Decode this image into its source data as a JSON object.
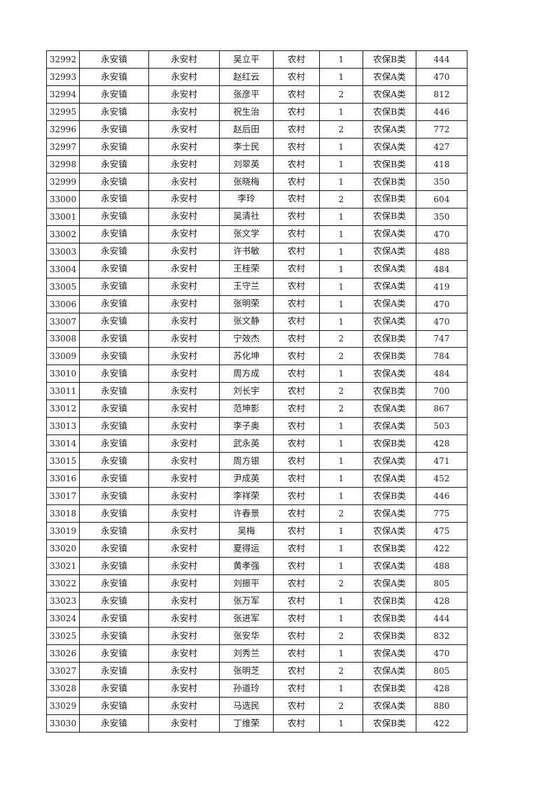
{
  "table": {
    "rows": [
      [
        "32992",
        "永安镇",
        "永安村",
        "吴立平",
        "农村",
        "1",
        "农保B类",
        "444"
      ],
      [
        "32993",
        "永安镇",
        "永安村",
        "赵红云",
        "农村",
        "1",
        "农保A类",
        "470"
      ],
      [
        "32994",
        "永安镇",
        "永安村",
        "张彦平",
        "农村",
        "2",
        "农保A类",
        "812"
      ],
      [
        "32995",
        "永安镇",
        "永安村",
        "祝生治",
        "农村",
        "1",
        "农保B类",
        "446"
      ],
      [
        "32996",
        "永安镇",
        "永安村",
        "赵后田",
        "农村",
        "2",
        "农保A类",
        "772"
      ],
      [
        "32997",
        "永安镇",
        "永安村",
        "李士民",
        "农村",
        "1",
        "农保A类",
        "427"
      ],
      [
        "32998",
        "永安镇",
        "永安村",
        "刘翠英",
        "农村",
        "1",
        "农保B类",
        "418"
      ],
      [
        "32999",
        "永安镇",
        "永安村",
        "张晓梅",
        "农村",
        "1",
        "农保B类",
        "350"
      ],
      [
        "33000",
        "永安镇",
        "永安村",
        "李玲",
        "农村",
        "2",
        "农保B类",
        "604"
      ],
      [
        "33001",
        "永安镇",
        "永安村",
        "吴清社",
        "农村",
        "1",
        "农保B类",
        "350"
      ],
      [
        "33002",
        "永安镇",
        "永安村",
        "张文学",
        "农村",
        "1",
        "农保A类",
        "470"
      ],
      [
        "33003",
        "永安镇",
        "永安村",
        "许书敏",
        "农村",
        "1",
        "农保A类",
        "488"
      ],
      [
        "33004",
        "永安镇",
        "永安村",
        "王桂荣",
        "农村",
        "1",
        "农保A类",
        "484"
      ],
      [
        "33005",
        "永安镇",
        "永安村",
        "王守兰",
        "农村",
        "1",
        "农保A类",
        "419"
      ],
      [
        "33006",
        "永安镇",
        "永安村",
        "张明荣",
        "农村",
        "1",
        "农保A类",
        "470"
      ],
      [
        "33007",
        "永安镇",
        "永安村",
        "张文静",
        "农村",
        "1",
        "农保A类",
        "470"
      ],
      [
        "33008",
        "永安镇",
        "永安村",
        "宁效杰",
        "农村",
        "2",
        "农保B类",
        "747"
      ],
      [
        "33009",
        "永安镇",
        "永安村",
        "苏化坤",
        "农村",
        "2",
        "农保B类",
        "784"
      ],
      [
        "33010",
        "永安镇",
        "永安村",
        "周方成",
        "农村",
        "1",
        "农保A类",
        "484"
      ],
      [
        "33011",
        "永安镇",
        "永安村",
        "刘长宇",
        "农村",
        "2",
        "农保B类",
        "700"
      ],
      [
        "33012",
        "永安镇",
        "永安村",
        "范坤影",
        "农村",
        "2",
        "农保A类",
        "867"
      ],
      [
        "33013",
        "永安镇",
        "永安村",
        "李子奥",
        "农村",
        "1",
        "农保A类",
        "503"
      ],
      [
        "33014",
        "永安镇",
        "永安村",
        "武永英",
        "农村",
        "1",
        "农保B类",
        "428"
      ],
      [
        "33015",
        "永安镇",
        "永安村",
        "周方银",
        "农村",
        "1",
        "农保A类",
        "471"
      ],
      [
        "33016",
        "永安镇",
        "永安村",
        "尹成英",
        "农村",
        "1",
        "农保A类",
        "452"
      ],
      [
        "33017",
        "永安镇",
        "永安村",
        "李祥荣",
        "农村",
        "1",
        "农保B类",
        "446"
      ],
      [
        "33018",
        "永安镇",
        "永安村",
        "许春景",
        "农村",
        "2",
        "农保A类",
        "775"
      ],
      [
        "33019",
        "永安镇",
        "永安村",
        "吴梅",
        "农村",
        "1",
        "农保A类",
        "475"
      ],
      [
        "33020",
        "永安镇",
        "永安村",
        "夏得运",
        "农村",
        "1",
        "农保B类",
        "422"
      ],
      [
        "33021",
        "永安镇",
        "永安村",
        "黄孝强",
        "农村",
        "1",
        "农保A类",
        "488"
      ],
      [
        "33022",
        "永安镇",
        "永安村",
        "刘振平",
        "农村",
        "2",
        "农保A类",
        "805"
      ],
      [
        "33023",
        "永安镇",
        "永安村",
        "张万军",
        "农村",
        "1",
        "农保B类",
        "428"
      ],
      [
        "33024",
        "永安镇",
        "永安村",
        "张进军",
        "农村",
        "1",
        "农保B类",
        "444"
      ],
      [
        "33025",
        "永安镇",
        "永安村",
        "张安华",
        "农村",
        "2",
        "农保B类",
        "832"
      ],
      [
        "33026",
        "永安镇",
        "永安村",
        "刘秀兰",
        "农村",
        "1",
        "农保A类",
        "470"
      ],
      [
        "33027",
        "永安镇",
        "永安村",
        "张明芝",
        "农村",
        "2",
        "农保A类",
        "805"
      ],
      [
        "33028",
        "永安镇",
        "永安村",
        "孙道玲",
        "农村",
        "1",
        "农保B类",
        "428"
      ],
      [
        "33029",
        "永安镇",
        "永安村",
        "马选民",
        "农村",
        "2",
        "农保A类",
        "880"
      ],
      [
        "33030",
        "永安镇",
        "永安村",
        "丁维荣",
        "农村",
        "1",
        "农保B类",
        "422"
      ]
    ]
  }
}
